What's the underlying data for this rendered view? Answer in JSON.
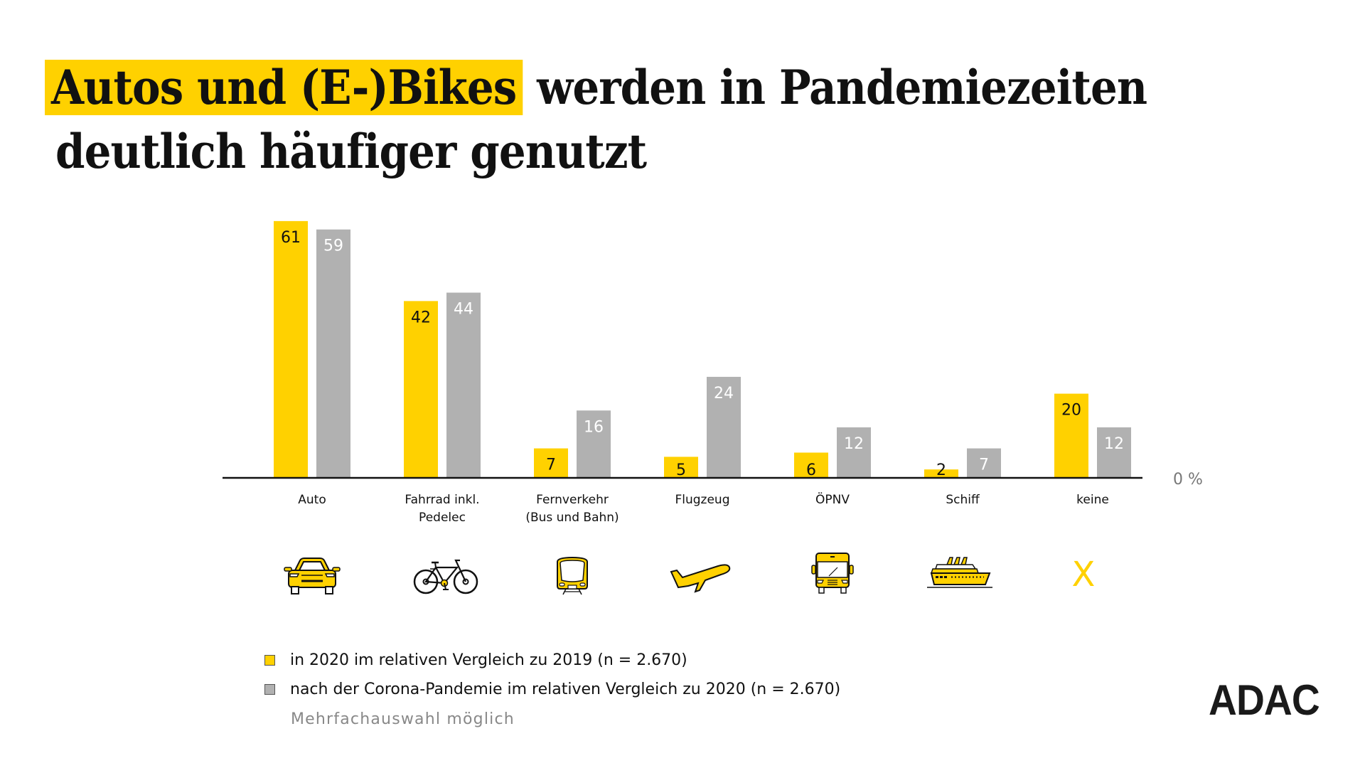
{
  "title": {
    "highlight": "Autos und (E-)Bikes",
    "line1_rest": " werden in Pandemiezeiten",
    "line2": "deutlich häufiger genutzt"
  },
  "colors": {
    "accent_yellow": "#ffd100",
    "series_gray": "#b1b1b1",
    "axis": "#111111"
  },
  "chart_data": {
    "type": "bar",
    "title": "Autos und (E-)Bikes werden in Pandemiezeiten deutlich häufiger genutzt",
    "xlabel": "",
    "ylabel": "",
    "y_unit": "%",
    "ylim": [
      0,
      61
    ],
    "zero_label": "0 %",
    "grid": false,
    "legend_position": "bottom-left",
    "categories": [
      [
        "Auto"
      ],
      [
        "Fahrrad inkl.",
        "Pedelec"
      ],
      [
        "Fernverkehr",
        "(Bus und Bahn)"
      ],
      [
        "Flugzeug"
      ],
      [
        "ÖPNV"
      ],
      [
        "Schiff"
      ],
      [
        "keine"
      ]
    ],
    "category_icons": [
      "car-icon",
      "bicycle-icon",
      "train-icon",
      "airplane-icon",
      "bus-icon",
      "ship-icon",
      "x-icon"
    ],
    "x_icon_glyph": "X",
    "series": [
      {
        "name": "in 2020 im relativen Vergleich zu 2019 (n = 2.670)",
        "color": "#ffd100",
        "label_color": "#111111",
        "values": [
          61,
          42,
          7,
          5,
          6,
          2,
          20
        ]
      },
      {
        "name": "nach der Corona-Pandemie im relativen Vergleich zu 2020 (n = 2.670)",
        "color": "#b1b1b1",
        "label_color": "#ffffff",
        "values": [
          59,
          44,
          16,
          24,
          12,
          7,
          12
        ]
      }
    ]
  },
  "legend": {
    "items": [
      {
        "label": "in 2020 im relativen Vergleich zu 2019 (n = 2.670)",
        "color": "#ffd100"
      },
      {
        "label": "nach der Corona-Pandemie im relativen Vergleich zu 2020 (n = 2.670)",
        "color": "#b1b1b1"
      }
    ],
    "note": "Mehrfachauswahl möglich"
  },
  "logo": {
    "text": "ADAC"
  }
}
